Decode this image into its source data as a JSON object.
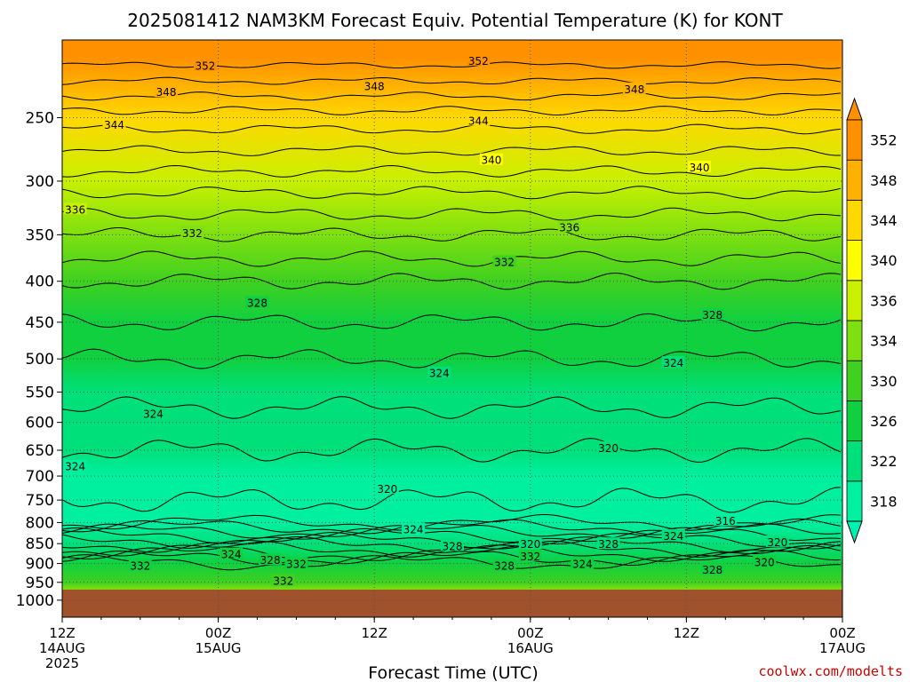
{
  "credit": "coolwx.com/modelts",
  "chart_data": {
    "type": "heatmap",
    "title": "2025081412 NAM3KM Forecast Equiv. Potential Temperature (K) for KONT",
    "xlabel": "Forecast Time (UTC)",
    "ylabel": "",
    "x_ticks": [
      {
        "hours": 0,
        "line1": "12Z",
        "line2": "14AUG",
        "line3": "2025"
      },
      {
        "hours": 12,
        "line1": "00Z",
        "line2": "15AUG",
        "line3": ""
      },
      {
        "hours": 24,
        "line1": "12Z",
        "line2": "",
        "line3": ""
      },
      {
        "hours": 36,
        "line1": "00Z",
        "line2": "16AUG",
        "line3": ""
      },
      {
        "hours": 48,
        "line1": "12Z",
        "line2": "",
        "line3": ""
      },
      {
        "hours": 60,
        "line1": "00Z",
        "line2": "17AUG",
        "line3": ""
      }
    ],
    "xlim": [
      0,
      60
    ],
    "y_ticks": [
      250,
      300,
      350,
      400,
      450,
      500,
      550,
      600,
      650,
      700,
      750,
      800,
      850,
      900,
      950,
      1000
    ],
    "ylim": [
      200,
      1050
    ],
    "y_scale": "log (pressure, hPa)",
    "surface_pressure": 970,
    "colorbar": {
      "levels": [
        318,
        322,
        326,
        330,
        334,
        336,
        340,
        344,
        348,
        352
      ],
      "colors": [
        "#00f0a0",
        "#00e07a",
        "#10d040",
        "#40d020",
        "#7ee010",
        "#c8f000",
        "#ffff00",
        "#ffd800",
        "#ffb000",
        "#ff9000"
      ],
      "extend": "both"
    },
    "profile_mean": [
      {
        "p": 210,
        "theta_e": 353
      },
      {
        "p": 250,
        "theta_e": 345
      },
      {
        "p": 300,
        "theta_e": 339
      },
      {
        "p": 350,
        "theta_e": 334
      },
      {
        "p": 400,
        "theta_e": 330
      },
      {
        "p": 450,
        "theta_e": 328
      },
      {
        "p": 500,
        "theta_e": 326
      },
      {
        "p": 550,
        "theta_e": 325
      },
      {
        "p": 600,
        "theta_e": 323
      },
      {
        "p": 650,
        "theta_e": 322
      },
      {
        "p": 700,
        "theta_e": 321
      },
      {
        "p": 750,
        "theta_e": 320
      },
      {
        "p": 800,
        "theta_e": 321
      },
      {
        "p": 850,
        "theta_e": 324
      },
      {
        "p": 900,
        "theta_e": 328
      },
      {
        "p": 950,
        "theta_e": 332
      },
      {
        "p": 970,
        "theta_e": 334
      }
    ],
    "contour_labels": [
      {
        "value": "352",
        "hours": 11,
        "p": 215
      },
      {
        "value": "352",
        "hours": 32,
        "p": 212
      },
      {
        "value": "348",
        "hours": 8,
        "p": 232
      },
      {
        "value": "348",
        "hours": 24,
        "p": 228
      },
      {
        "value": "348",
        "hours": 44,
        "p": 230
      },
      {
        "value": "344",
        "hours": 4,
        "p": 255
      },
      {
        "value": "344",
        "hours": 32,
        "p": 252
      },
      {
        "value": "340",
        "hours": 33,
        "p": 282
      },
      {
        "value": "340",
        "hours": 49,
        "p": 288
      },
      {
        "value": "336",
        "hours": 1,
        "p": 325
      },
      {
        "value": "336",
        "hours": 39,
        "p": 342
      },
      {
        "value": "332",
        "hours": 10,
        "p": 348
      },
      {
        "value": "332",
        "hours": 34,
        "p": 378
      },
      {
        "value": "328",
        "hours": 15,
        "p": 425
      },
      {
        "value": "328",
        "hours": 50,
        "p": 440
      },
      {
        "value": "324",
        "hours": 29,
        "p": 520
      },
      {
        "value": "324",
        "hours": 47,
        "p": 505
      },
      {
        "value": "324",
        "hours": 7,
        "p": 585
      },
      {
        "value": "324",
        "hours": 1,
        "p": 680
      },
      {
        "value": "320",
        "hours": 42,
        "p": 645
      },
      {
        "value": "320",
        "hours": 25,
        "p": 725
      },
      {
        "value": "316",
        "hours": 51,
        "p": 795
      },
      {
        "value": "324",
        "hours": 27,
        "p": 815
      },
      {
        "value": "324",
        "hours": 47,
        "p": 830
      },
      {
        "value": "320",
        "hours": 55,
        "p": 845
      },
      {
        "value": "320",
        "hours": 36,
        "p": 850
      },
      {
        "value": "328",
        "hours": 30,
        "p": 855
      },
      {
        "value": "328",
        "hours": 42,
        "p": 850
      },
      {
        "value": "324",
        "hours": 13,
        "p": 875
      },
      {
        "value": "328",
        "hours": 16,
        "p": 890
      },
      {
        "value": "332",
        "hours": 18,
        "p": 900
      },
      {
        "value": "332",
        "hours": 6,
        "p": 905
      },
      {
        "value": "332",
        "hours": 36,
        "p": 880
      },
      {
        "value": "324",
        "hours": 40,
        "p": 900
      },
      {
        "value": "328",
        "hours": 34,
        "p": 905
      },
      {
        "value": "320",
        "hours": 54,
        "p": 895
      },
      {
        "value": "328",
        "hours": 50,
        "p": 915
      },
      {
        "value": "332",
        "hours": 17,
        "p": 945
      }
    ]
  }
}
